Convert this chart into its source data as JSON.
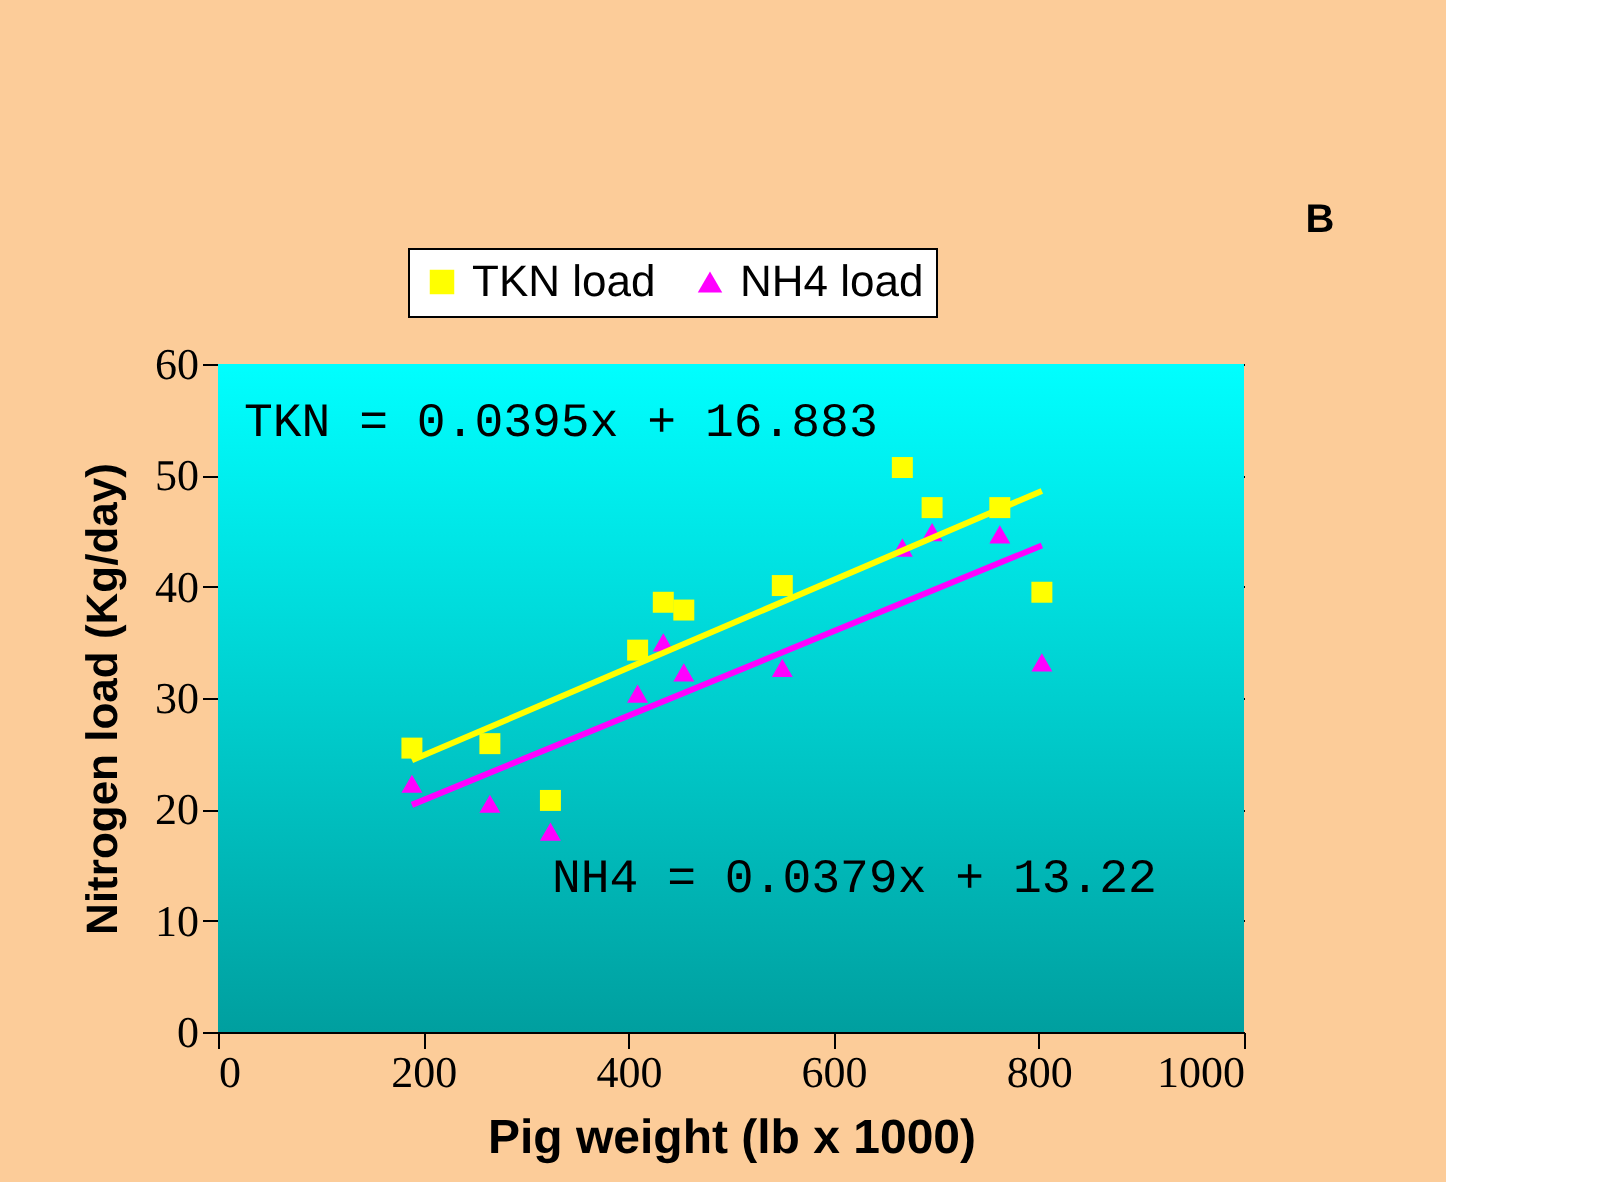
{
  "chart_data": {
    "type": "scatter",
    "xlabel": "Pig weight (lb x 1000)",
    "ylabel": "Nitrogen load (Kg/day)",
    "xlim": [
      0,
      1000
    ],
    "xticks": [
      0,
      200,
      400,
      600,
      800,
      1000
    ],
    "ylim": [
      0,
      60
    ],
    "yticks": [
      0,
      10,
      20,
      30,
      40,
      50,
      60
    ],
    "grid": "y",
    "legend": "top",
    "series": [
      {
        "name": "TKN  load",
        "marker": "square",
        "color": "#ffff00",
        "x": [
          189,
          265,
          324,
          409,
          434,
          454,
          550,
          667,
          696,
          762,
          803
        ],
        "values": [
          25.5,
          25.9,
          20.8,
          34.3,
          38.6,
          37.9,
          40.1,
          50.7,
          47.1,
          47.1,
          39.5
        ]
      },
      {
        "name": "NH4 load",
        "marker": "triangle",
        "color": "#ff00ff",
        "x": [
          189,
          265,
          324,
          409,
          434,
          454,
          550,
          667,
          696,
          762,
          803
        ],
        "values": [
          22.3,
          20.5,
          18.0,
          30.4,
          35.0,
          32.3,
          32.7,
          43.5,
          44.9,
          44.7,
          33.2
        ]
      },
      {
        "type": "line",
        "color": "#ffff00",
        "x": [
          189,
          803
        ],
        "values": [
          24.4,
          48.6
        ]
      },
      {
        "type": "line",
        "color": "#ff00ff",
        "x": [
          189,
          803
        ],
        "values": [
          20.4,
          43.7
        ]
      }
    ],
    "annotations": [
      "TKN = 0.0395x + 16.883",
      "NH4 = 0.0379x + 13.22",
      "B"
    ]
  }
}
